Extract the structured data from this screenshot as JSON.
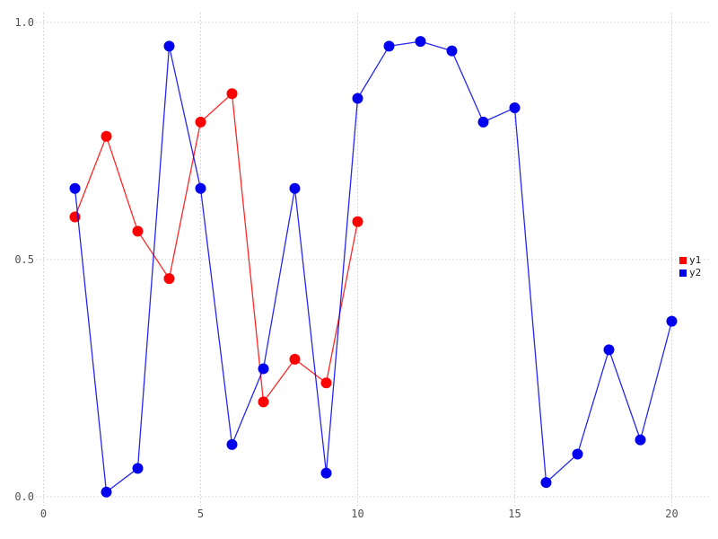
{
  "chart_data": {
    "type": "line",
    "title": "",
    "xlabel": "",
    "ylabel": "",
    "xlim": [
      0,
      20
    ],
    "ylim": [
      0.0,
      1.0
    ],
    "x_ticks": [
      0,
      5,
      10,
      15,
      20
    ],
    "x_tick_labels": [
      "0",
      "5",
      "10",
      "15",
      "20"
    ],
    "y_ticks": [
      0.0,
      0.5,
      1.0
    ],
    "y_tick_labels": [
      "0.0",
      "0.5",
      "1.0"
    ],
    "grid": "dotted-major-both",
    "legend_position": "right-outside",
    "series": [
      {
        "name": "y1",
        "color": "#ff0000",
        "x": [
          1,
          2,
          3,
          4,
          5,
          6,
          7,
          8,
          9,
          10
        ],
        "values": [
          0.59,
          0.76,
          0.56,
          0.46,
          0.79,
          0.85,
          0.2,
          0.29,
          0.24,
          0.58
        ]
      },
      {
        "name": "y2",
        "color": "#0000ee",
        "x": [
          1,
          2,
          3,
          4,
          5,
          6,
          7,
          8,
          9,
          10,
          11,
          12,
          13,
          14,
          15,
          16,
          17,
          18,
          19,
          20
        ],
        "values": [
          0.65,
          0.01,
          0.06,
          0.95,
          0.65,
          0.11,
          0.27,
          0.65,
          0.05,
          0.84,
          0.95,
          0.96,
          0.94,
          0.79,
          0.82,
          0.03,
          0.09,
          0.31,
          0.12,
          0.37
        ]
      }
    ],
    "style": {
      "grid_color": "#cccccc",
      "tick_label_color": "#555055",
      "background_color": "#ffffff",
      "marker_radius": 5.5,
      "line_width": 1.3
    }
  },
  "legend": {
    "items": [
      {
        "label": "y1",
        "color": "#ff0000"
      },
      {
        "label": "y2",
        "color": "#0000ee"
      }
    ]
  }
}
